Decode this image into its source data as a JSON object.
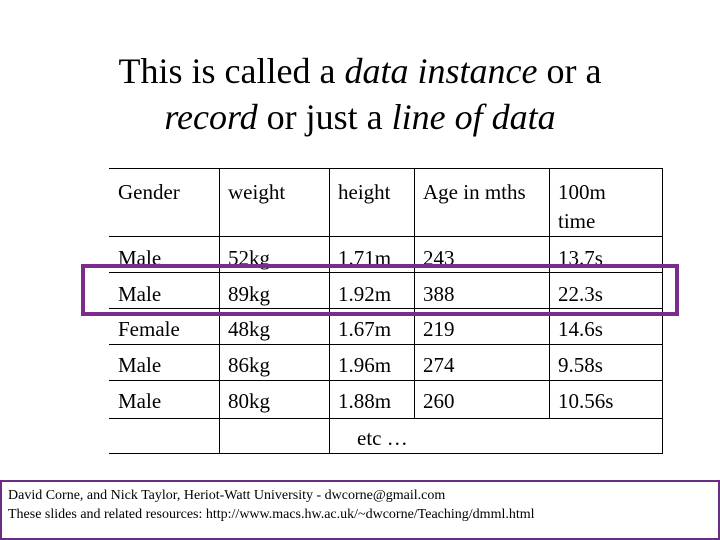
{
  "title": {
    "line1_plain": "This is called a ",
    "line1_italic": "data instance",
    "line1_end": " or a",
    "line2_italic1": "record",
    "line2_plain": " or just a ",
    "line2_italic2": "line of data"
  },
  "table": {
    "headers": [
      "Gender",
      "weight",
      "height",
      "Age in mths",
      "100m"
    ],
    "header_extra": "time",
    "rows": [
      [
        "Male",
        "52kg",
        "1.71m",
        "243",
        "13.7s"
      ],
      [
        "Male",
        "89kg",
        "1.92m",
        "388",
        "22.3s"
      ],
      [
        "Female",
        "48kg",
        "1.67m",
        "219",
        "14.6s"
      ],
      [
        "Male",
        "86kg",
        "1.96m",
        "274",
        "9.58s"
      ],
      [
        "Male",
        "80kg",
        "1.88m",
        "260",
        "10.56s"
      ]
    ],
    "etc": "etc …"
  },
  "footer": {
    "line1": "David Corne, and Nick Taylor,  Heriot-Watt University  -  dwcorne@gmail.com",
    "line2": "These slides and related resources:   http://www.macs.hw.ac.uk/~dwcorne/Teaching/dmml.html"
  },
  "colors": {
    "highlight": "#7b2d8e",
    "footer_border": "#6a2c85"
  }
}
